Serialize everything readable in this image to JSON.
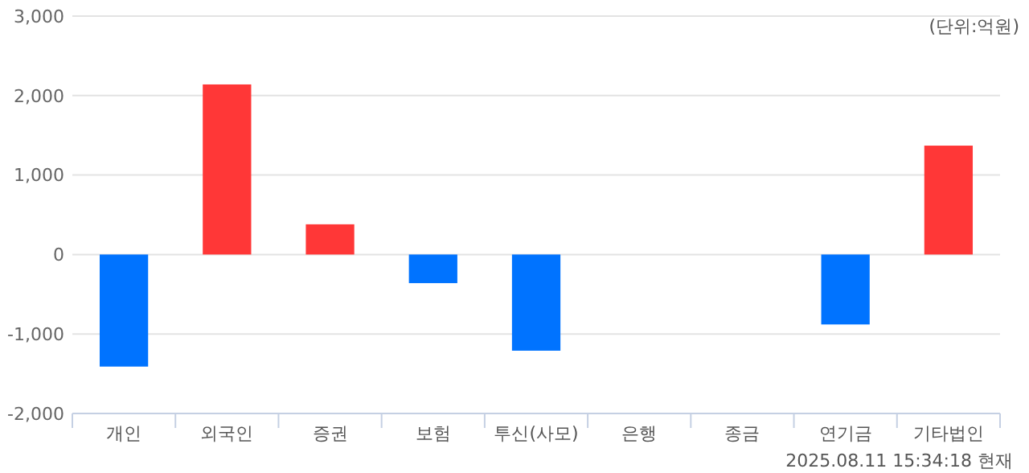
{
  "chart_data": {
    "type": "bar",
    "categories": [
      "개인",
      "외국인",
      "증권",
      "보험",
      "투신(사모)",
      "은행",
      "종금",
      "연기금",
      "기타법인"
    ],
    "values": [
      -1410,
      2140,
      380,
      -360,
      -1210,
      0,
      0,
      -880,
      1370
    ],
    "colors": [
      "#0073ff",
      "#ff3737",
      "#ff3737",
      "#0073ff",
      "#0073ff",
      "#0073ff",
      "#0073ff",
      "#0073ff",
      "#ff3737"
    ],
    "ylim": [
      -2000,
      3000
    ],
    "yticks": [
      {
        "value": -2000,
        "label": "-2,000"
      },
      {
        "value": -1000,
        "label": "-1,000"
      },
      0,
      {
        "value": 1000,
        "label": "1,000"
      },
      {
        "value": 2000,
        "label": "2,000"
      },
      {
        "value": 3000,
        "label": "3,000"
      }
    ],
    "grid": "y",
    "annotations": [
      "(단위:억원)",
      "2025.08.11 15:34:18 현재"
    ]
  }
}
